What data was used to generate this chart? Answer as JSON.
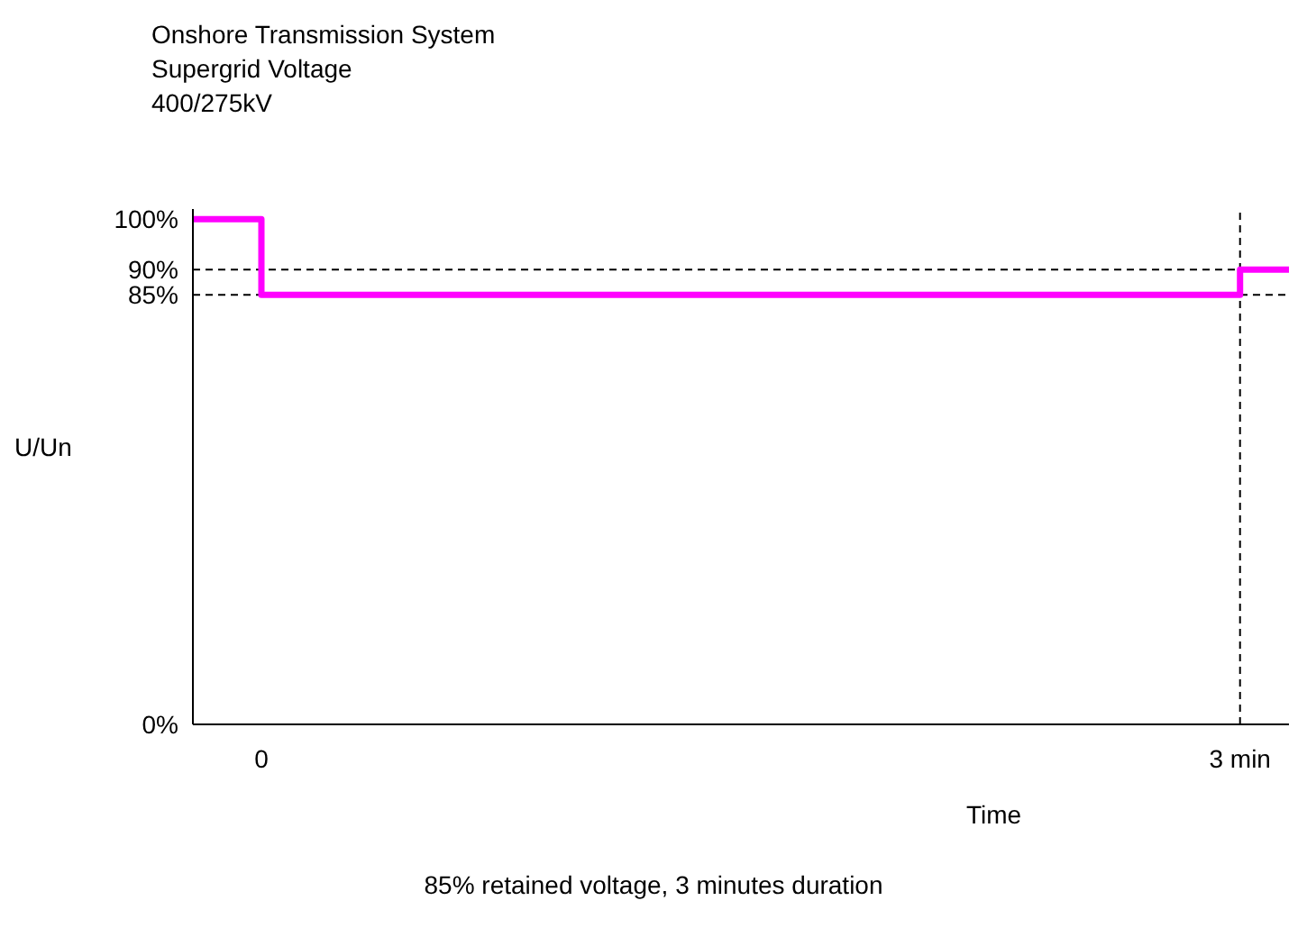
{
  "chart_data": {
    "type": "step",
    "title": "Onshore Transmission System\nSupergrid Voltage\n400/275kV",
    "ylabel": "U/Un",
    "xlabel": "Time",
    "annotations": [
      "85% retained voltage, 3 minutes duration"
    ],
    "x": [
      -0.21,
      0,
      3,
      3.15
    ],
    "series": [
      {
        "color": "#ff00ff",
        "values": [
          100,
          85,
          90,
          90
        ]
      }
    ],
    "xlim": [
      -0.21,
      3.15
    ],
    "xticks": [
      0,
      {
        "value": 3,
        "label": "3 min"
      }
    ],
    "ylim": [
      0,
      102
    ],
    "yticks": [
      {
        "value": 0,
        "label": "0%"
      },
      {
        "value": 85,
        "label": "85%"
      },
      {
        "value": 90,
        "label": "90%"
      },
      {
        "value": 100,
        "label": "100%"
      }
    ],
    "ref_lines": [
      {
        "axis": "y",
        "value": 85,
        "line_style": "dashed",
        "color": "#000000"
      },
      {
        "axis": "y",
        "value": 90,
        "line_style": "dashed",
        "color": "#000000"
      },
      {
        "axis": "x",
        "value": 3,
        "line_style": "dashed",
        "color": "#000000"
      }
    ],
    "grid": false,
    "legend": false,
    "marker": "none",
    "line_style": "solid"
  }
}
